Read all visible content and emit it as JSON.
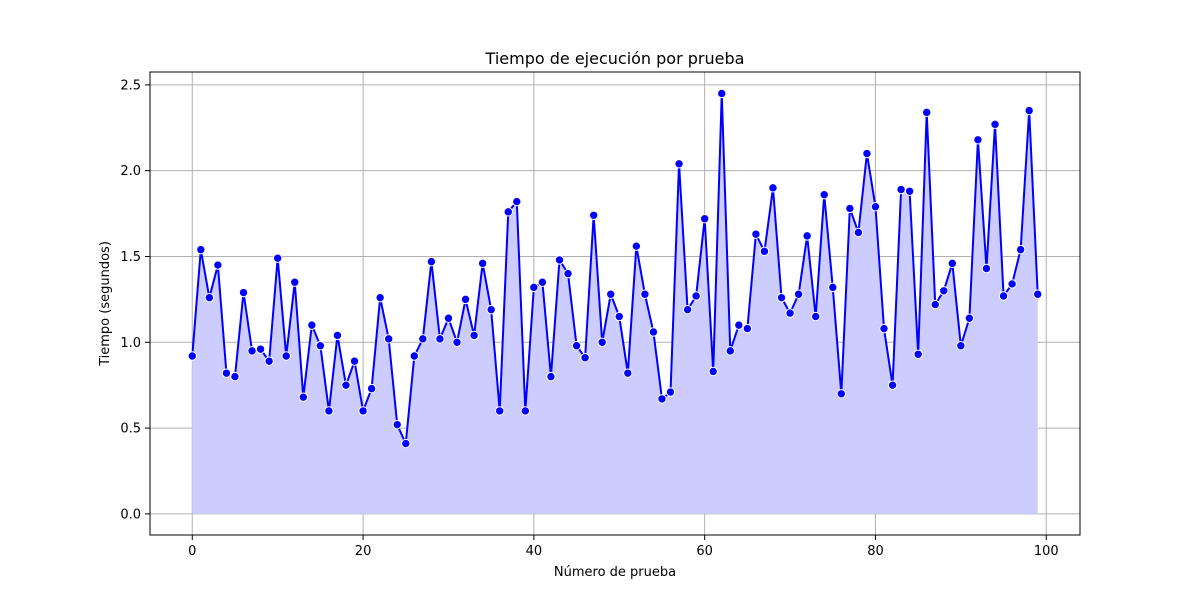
{
  "chart_data": {
    "type": "line",
    "title": "Tiempo de ejecución por prueba",
    "xlabel": "Número de prueba",
    "ylabel": "Tiempo (segundos)",
    "xlim": [
      -4.95,
      103.95
    ],
    "ylim": [
      -0.123,
      2.575
    ],
    "xticks": [
      0,
      20,
      40,
      60,
      80,
      100
    ],
    "yticks": [
      0.0,
      0.5,
      1.0,
      1.5,
      2.0,
      2.5
    ],
    "xtick_labels": [
      "0",
      "20",
      "40",
      "60",
      "80",
      "100"
    ],
    "ytick_labels": [
      "0.0",
      "0.5",
      "1.0",
      "1.5",
      "2.0",
      "2.5"
    ],
    "grid": true,
    "fill_under_line": true,
    "series": [
      {
        "line_color": "#0000ff",
        "fill_color": "#ccccff",
        "marker_color": "#0000ff",
        "x": [
          0,
          1,
          2,
          3,
          4,
          5,
          6,
          7,
          8,
          9,
          10,
          11,
          12,
          13,
          14,
          15,
          16,
          17,
          18,
          19,
          20,
          21,
          22,
          23,
          24,
          25,
          26,
          27,
          28,
          29,
          30,
          31,
          32,
          33,
          34,
          35,
          36,
          37,
          38,
          39,
          40,
          41,
          42,
          43,
          44,
          45,
          46,
          47,
          48,
          49,
          50,
          51,
          52,
          53,
          54,
          55,
          56,
          57,
          58,
          59,
          60,
          61,
          62,
          63,
          64,
          65,
          66,
          67,
          68,
          69,
          70,
          71,
          72,
          73,
          74,
          75,
          76,
          77,
          78,
          79,
          80,
          81,
          82,
          83,
          84,
          85,
          86,
          87,
          88,
          89,
          90,
          91,
          92,
          93,
          94,
          95,
          96,
          97,
          98,
          99
        ],
        "values": [
          0.92,
          1.54,
          1.26,
          1.45,
          0.82,
          0.8,
          1.29,
          0.95,
          0.96,
          0.89,
          1.49,
          0.92,
          1.35,
          0.68,
          1.1,
          0.98,
          0.6,
          1.04,
          0.75,
          0.89,
          0.6,
          0.73,
          1.26,
          1.02,
          0.52,
          0.41,
          0.92,
          1.02,
          1.47,
          1.02,
          1.14,
          1.0,
          1.25,
          1.04,
          1.46,
          1.19,
          0.6,
          1.76,
          1.82,
          0.6,
          1.32,
          1.35,
          0.8,
          1.48,
          1.4,
          0.98,
          0.91,
          1.74,
          1.0,
          1.28,
          1.15,
          0.82,
          1.56,
          1.28,
          1.06,
          0.67,
          0.71,
          2.04,
          1.19,
          1.27,
          1.72,
          0.83,
          2.45,
          0.95,
          1.1,
          1.08,
          1.63,
          1.53,
          1.9,
          1.26,
          1.17,
          1.28,
          1.62,
          1.15,
          1.86,
          1.32,
          0.7,
          1.78,
          1.64,
          2.1,
          1.79,
          1.08,
          0.75,
          1.89,
          1.88,
          0.93,
          2.34,
          1.22,
          1.3,
          1.46,
          0.98,
          1.14,
          2.18,
          1.43,
          2.27,
          1.27,
          1.34,
          1.54,
          2.35,
          1.28
        ]
      }
    ]
  }
}
